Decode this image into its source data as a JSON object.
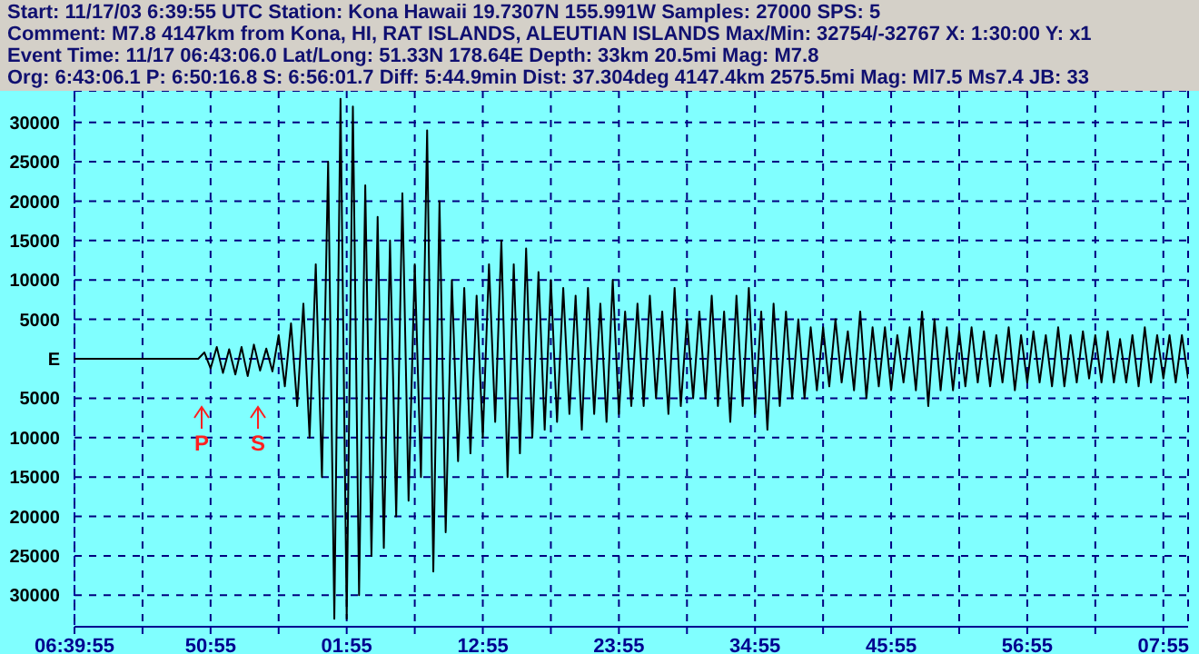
{
  "chart_data": {
    "type": "line",
    "title": "Start: 11/17/03  6:39:55 UTC Station: Kona Hawaii 19.7307N 155.991W Samples: 27000  SPS: 5",
    "subtitle": "Comment: M7.8  4147km from Kona, HI,   RAT ISLANDS, ALEUTIAN ISLANDS  Max/Min: 32754/-32767 X: 1:30:00 Y: x1",
    "annotations": [
      "Event Time: 11/17 06:43:06.0 Lat/Long: 51.33N 178.64E Depth: 33km 20.5mi Mag: M7.8",
      "Org: 6:43:06.1 P: 6:50:16.8 S: 6:56:01.7 Diff: 5:44.9min Dist: 37.304deg 4147.4km 2575.5mi  Mag: Ml7.5 Ms7.4 JB: 33",
      "P",
      "S"
    ],
    "categories": [
      "06:39:55",
      null,
      null,
      null,
      null,
      null,
      null,
      null,
      null,
      null,
      null,
      null,
      null,
      null,
      null,
      null,
      null,
      null,
      null,
      null,
      null,
      null,
      "50:55",
      null,
      null,
      null,
      null,
      null,
      null,
      null,
      null,
      null,
      null,
      null,
      null,
      null,
      null,
      null,
      null,
      null,
      null,
      null,
      null,
      null,
      "01:55",
      null,
      null,
      null,
      null,
      null,
      null,
      null,
      null,
      null,
      null,
      null,
      null,
      null,
      null,
      null,
      null,
      null,
      null,
      null,
      null,
      null,
      "12:55",
      null,
      null,
      null,
      null,
      null,
      null,
      null,
      null,
      null,
      null,
      null,
      null,
      null,
      null,
      null,
      null,
      null,
      null,
      null,
      null,
      null,
      "23:55",
      null,
      null,
      null,
      null,
      null,
      null,
      null,
      null,
      null,
      null,
      null,
      null,
      null,
      null,
      null,
      null,
      null,
      null,
      null,
      null,
      null,
      "34:55",
      null,
      null,
      null,
      null,
      null,
      null,
      null,
      null,
      null,
      null,
      null,
      null,
      null,
      null,
      null,
      null,
      null,
      null,
      null,
      null,
      null,
      "45:55",
      null,
      null,
      null,
      null,
      null,
      null,
      null,
      null,
      null,
      null,
      null,
      null,
      null,
      null,
      null,
      null,
      null,
      null,
      null,
      null,
      null,
      "56:55",
      null,
      null,
      null,
      null,
      null,
      null,
      null,
      null,
      null,
      null,
      null,
      null,
      null,
      null,
      null,
      null,
      null,
      null,
      null,
      null,
      null,
      "07:55",
      null,
      null,
      null,
      null
    ],
    "ylim": [
      -34000,
      34000
    ],
    "yticks": [
      {
        "value": 30000,
        "label": "30000"
      },
      {
        "value": 25000,
        "label": "25000"
      },
      {
        "value": 20000,
        "label": "20000"
      },
      {
        "value": 15000,
        "label": "15000"
      },
      {
        "value": 10000,
        "label": "10000"
      },
      {
        "value": 5000,
        "label": "5000"
      },
      {
        "value": 0,
        "label": "E"
      },
      {
        "value": -5000,
        "label": "5000"
      },
      {
        "value": -10000,
        "label": "10000"
      },
      {
        "value": -15000,
        "label": "15000"
      },
      {
        "value": -20000,
        "label": "20000"
      },
      {
        "value": -25000,
        "label": "25000"
      },
      {
        "value": -30000,
        "label": "30000"
      }
    ],
    "grid": true,
    "marker": "none",
    "line_style": "solid",
    "series": [
      {
        "color": "#000000",
        "values": [
          0,
          0,
          0,
          0,
          0,
          0,
          0,
          0,
          0,
          0,
          0,
          0,
          0,
          0,
          0,
          0,
          0,
          0,
          0,
          0,
          0,
          800,
          -1200,
          1500,
          -1800,
          1200,
          -2000,
          1500,
          -2200,
          1800,
          -1500,
          1300,
          -1600,
          3000,
          -3500,
          4500,
          -6000,
          7000,
          -10000,
          12000,
          -15000,
          25000,
          -33000,
          33000,
          -33000,
          32000,
          -30000,
          22000,
          -25000,
          18000,
          -24000,
          15000,
          -20000,
          21000,
          -18000,
          12000,
          -15000,
          29000,
          -27000,
          20000,
          -22000,
          10000,
          -13000,
          9000,
          -12000,
          8000,
          -10000,
          12000,
          -8000,
          15000,
          -15000,
          12000,
          -12000,
          14000,
          -10000,
          11000,
          -9000,
          10000,
          -8000,
          9000,
          -7000,
          8000,
          -9000,
          9000,
          -7000,
          7000,
          -8000,
          10000,
          -7000,
          6000,
          -6000,
          7000,
          -6000,
          8000,
          -5000,
          6000,
          -7000,
          9000,
          -6000,
          5000,
          -5000,
          6000,
          -5000,
          8000,
          -6000,
          6000,
          -8000,
          8000,
          -6000,
          9000,
          -7000,
          6000,
          -9000,
          7000,
          -6000,
          6000,
          -5000,
          5000,
          -5000,
          4000,
          -4000,
          4000,
          -3500,
          5000,
          -3000,
          3500,
          -4000,
          6000,
          -5000,
          4000,
          -3500,
          4000,
          -4000,
          3000,
          -3000,
          4000,
          -4000,
          6000,
          -6000,
          5000,
          -4000,
          4000,
          -4000,
          3500,
          -3500,
          4000,
          -3000,
          3500,
          -3500,
          3000,
          -3000,
          4000,
          -4000,
          3000,
          -3000,
          3500,
          -3000,
          3000,
          -3500,
          4000,
          -3500,
          3000,
          -3000,
          3500,
          -2500,
          3000,
          -3000,
          3500,
          -3000,
          2500,
          -3000,
          3000,
          -3500,
          4000,
          -3000,
          3000,
          -2500,
          3000,
          -3000,
          3000,
          -2500
        ]
      }
    ]
  }
}
